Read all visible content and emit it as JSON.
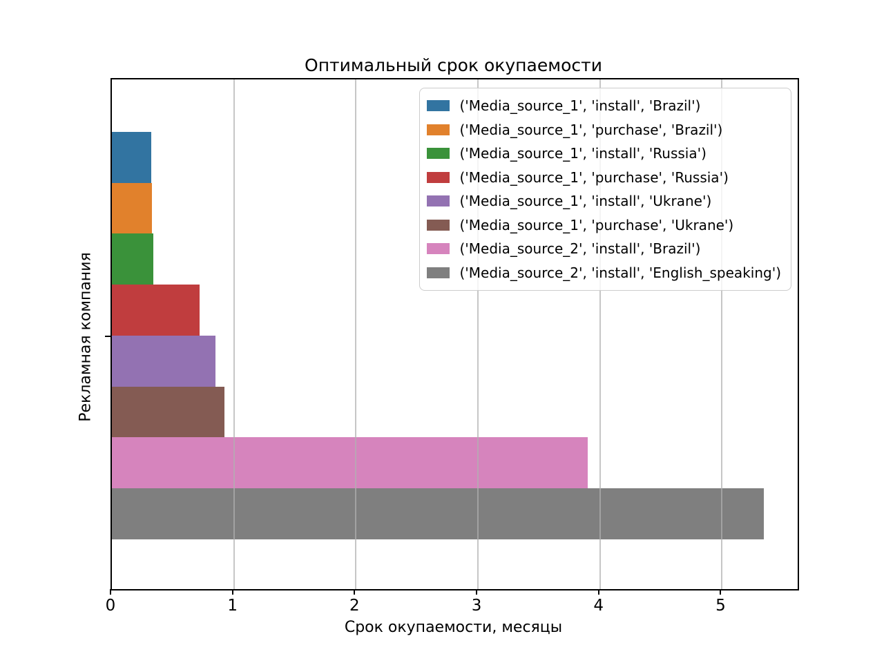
{
  "title": "Оптимальный срок окупаемости",
  "chart_data": {
    "type": "bar",
    "orientation": "horizontal",
    "title": "Оптимальный срок окупаемости",
    "xlabel": "Срок окупаемости, месяцы",
    "ylabel": "Рекламная компания",
    "xlim": [
      0,
      5.62
    ],
    "xticks": [
      "0",
      "1",
      "2",
      "3",
      "4",
      "5"
    ],
    "ytick_labels": [
      ""
    ],
    "grid": "vertical, drawn above bars",
    "legend_position": "upper right",
    "series": [
      {
        "name": "('Media_source_1', 'install', 'Brazil')",
        "value": 0.32,
        "color": "#3274a1"
      },
      {
        "name": "('Media_source_1', 'purchase', 'Brazil')",
        "value": 0.33,
        "color": "#e1812c"
      },
      {
        "name": "('Media_source_1', 'install', 'Russia')",
        "value": 0.34,
        "color": "#3a923a"
      },
      {
        "name": "('Media_source_1', 'purchase', 'Russia')",
        "value": 0.72,
        "color": "#c03d3e"
      },
      {
        "name": "('Media_source_1', 'install', 'Ukrane')",
        "value": 0.85,
        "color": "#9372b2"
      },
      {
        "name": "('Media_source_1', 'purchase', 'Ukrane')",
        "value": 0.92,
        "color": "#845b53"
      },
      {
        "name": "('Media_source_2', 'install', 'Brazil')",
        "value": 3.9,
        "color": "#d684bd"
      },
      {
        "name": "('Media_source_2', 'install', 'English_speaking')",
        "value": 5.34,
        "color": "#7f7f7f"
      }
    ]
  }
}
